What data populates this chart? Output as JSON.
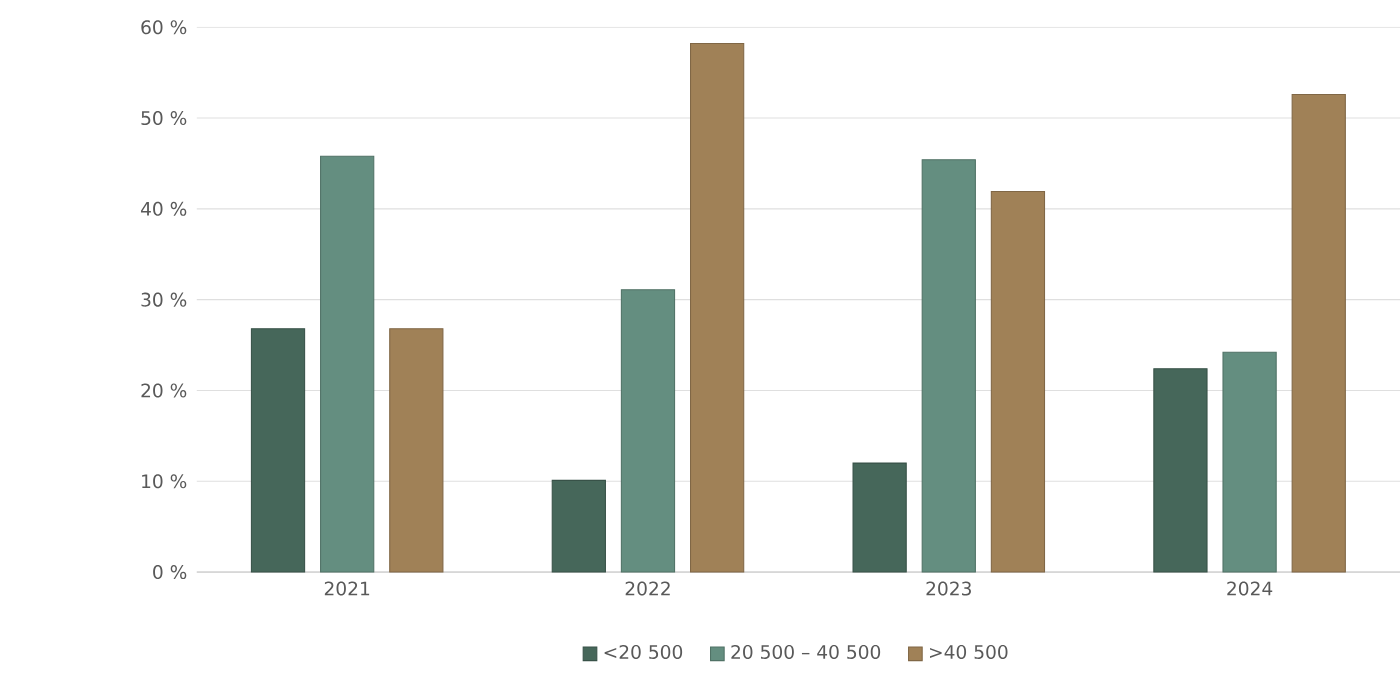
{
  "chart_data": {
    "type": "bar",
    "categories": [
      "2021",
      "2022",
      "2023",
      "2024"
    ],
    "series": [
      {
        "name": "<20 500",
        "color": "#46675a",
        "values": [
          26.8,
          10.1,
          12.0,
          22.4
        ]
      },
      {
        "name": "20 500 – 40 500",
        "color": "#648e80",
        "values": [
          45.8,
          31.1,
          45.4,
          24.2
        ]
      },
      {
        "name": ">40 500",
        "color": "#a08157",
        "values": [
          26.8,
          58.2,
          41.9,
          52.6
        ]
      }
    ],
    "ylim": [
      0,
      60
    ],
    "yticks": [
      {
        "value": 0,
        "label": "0 %"
      },
      {
        "value": 10,
        "label": "10 %"
      },
      {
        "value": 20,
        "label": "20 %"
      },
      {
        "value": 30,
        "label": "30 %"
      },
      {
        "value": 40,
        "label": "40 %"
      },
      {
        "value": 50,
        "label": "50 %"
      },
      {
        "value": 60,
        "label": "60 %"
      }
    ],
    "grid": "y",
    "legend": "bottom"
  }
}
